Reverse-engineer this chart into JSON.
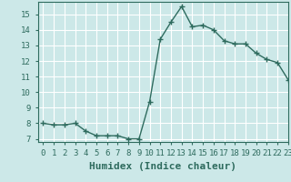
{
  "x": [
    0,
    1,
    2,
    3,
    4,
    5,
    6,
    7,
    8,
    9,
    10,
    11,
    12,
    13,
    14,
    15,
    16,
    17,
    18,
    19,
    20,
    21,
    22,
    23
  ],
  "y": [
    8.0,
    7.9,
    7.9,
    8.0,
    7.5,
    7.2,
    7.2,
    7.2,
    7.0,
    7.0,
    9.4,
    13.4,
    14.5,
    15.5,
    14.2,
    14.3,
    14.0,
    13.3,
    13.1,
    13.1,
    12.5,
    12.1,
    11.9,
    10.8
  ],
  "xlabel": "Humidex (Indice chaleur)",
  "xlim": [
    -0.5,
    23
  ],
  "ylim": [
    6.8,
    15.8
  ],
  "yticks": [
    7,
    8,
    9,
    10,
    11,
    12,
    13,
    14,
    15
  ],
  "xticks": [
    0,
    1,
    2,
    3,
    4,
    5,
    6,
    7,
    8,
    9,
    10,
    11,
    12,
    13,
    14,
    15,
    16,
    17,
    18,
    19,
    20,
    21,
    22,
    23
  ],
  "xtick_labels": [
    "0",
    "1",
    "2",
    "3",
    "4",
    "5",
    "6",
    "7",
    "8",
    "9",
    "10",
    "11",
    "12",
    "13",
    "14",
    "15",
    "16",
    "17",
    "18",
    "19",
    "20",
    "21",
    "22",
    "23"
  ],
  "line_color": "#2e6b5e",
  "marker": "+",
  "bg_color": "#cce8e8",
  "grid_color": "#ffffff",
  "xlabel_fontsize": 8,
  "tick_fontsize": 6.5,
  "border_color": "#2e6b5e"
}
